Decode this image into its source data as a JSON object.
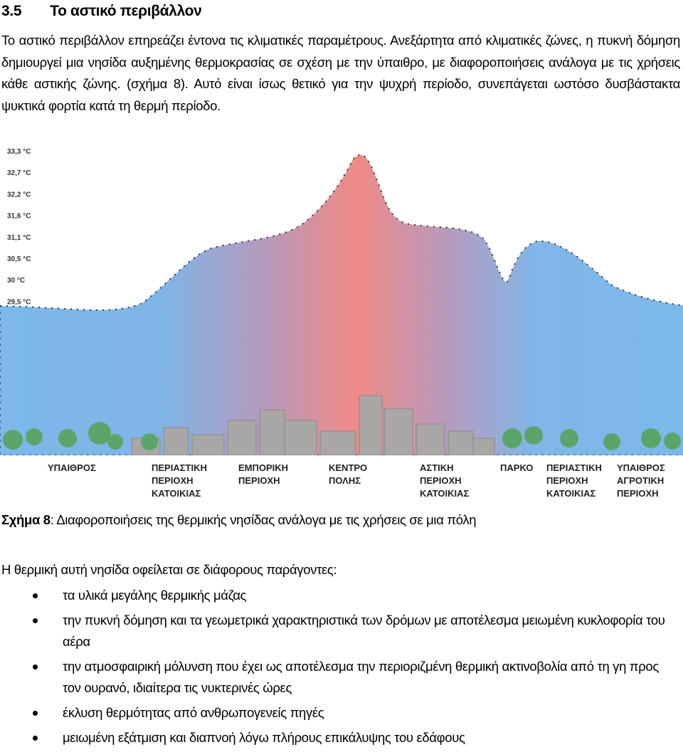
{
  "heading": {
    "number": "3.5",
    "title": "Το αστικό περιβάλλον"
  },
  "intro": "Το αστικό περιβάλλον επηρεάζει έντονα τις κλιματικές παραμέτρους. Ανεξάρτητα από κλιματικές ζώνες, η πυκνή δόμηση δημιουργεί μια νησίδα αυξημένης θερμοκρασίας σε σχέση με την ύπαιθρο, με διαφοροποιήσεις ανάλογα με τις χρήσεις κάθε αστικής ζώνης. (σχήμα 8). Αυτό είναι ίσως θετικό για την ψυχρή περίοδο, συνεπάγεται ωστόσο δυσβάστακτα ψυκτικά φορτία κατά τη θερμή περίοδο.",
  "figure": {
    "temperatures": [
      "33,3 °C",
      "32,7 °C",
      "32,2 °C",
      "31,6 °C",
      "31,1 °C",
      "30,5 °C",
      "30 °C",
      "29,5 °C"
    ],
    "zones": [
      [
        "ΥΠΑΙΘΡΟΣ"
      ],
      [
        "ΠΕΡΙΑΣΤΙΚΗ",
        "ΠΕΡΙΟΧΗ",
        "ΚΑΤΟΙΚΙΑΣ"
      ],
      [
        "ΕΜΠΟΡΙΚΗ",
        "ΠΕΡΙΟΧΗ"
      ],
      [
        "ΚΕΝΤΡΟ",
        "ΠΟΛΗΣ"
      ],
      [
        "ΑΣΤΙΚΗ",
        "ΠΕΡΙΟΧΗ",
        "ΚΑΤΟΙΚΙΑΣ"
      ],
      [
        "ΠΑΡΚΟ"
      ],
      [
        "ΠΕΡΙΑΣΤΙΚΗ",
        "ΠΕΡΙΟΧΗ",
        "ΚΑΤΟΙΚΙΑΣ"
      ],
      [
        "ΥΠΑΙΘΡΟΣ",
        "ΑΓΡΟΤΙΚΗ",
        "ΠΕΡΙΟΧΗ"
      ]
    ]
  },
  "caption": {
    "label": "Σχήμα 8",
    "text": ": Διαφοροποιήσεις της θερμικής νησίδας ανάλογα με τις χρήσεις σε μια πόλη"
  },
  "causes": {
    "lead": "Η θερμική αυτή νησίδα οφείλεται σε διάφορους παράγοντες:",
    "items": [
      "τα υλικά μεγάλης θερμικής μάζας",
      "την πυκνή δόμηση και τα γεωμετρικά χαρακτηριστικά των δρόμων με αποτέλεσμα μειωμένη κυκλοφορία του αέρα",
      "την ατμοσφαιρική μόλυνση που έχει ως αποτέλεσμα την περιοριζμένη θερμική ακτινοβολία από τη γη προς τον ουρανό, ιδιαίτερα τις νυκτερινές ώρες",
      "έκλυση θερμότητας από ανθρωπογενείς πηγές",
      "μειωμένη εξάτμιση και διαπνοή λόγω πλήρους επικάλυψης του εδάφους"
    ]
  }
}
